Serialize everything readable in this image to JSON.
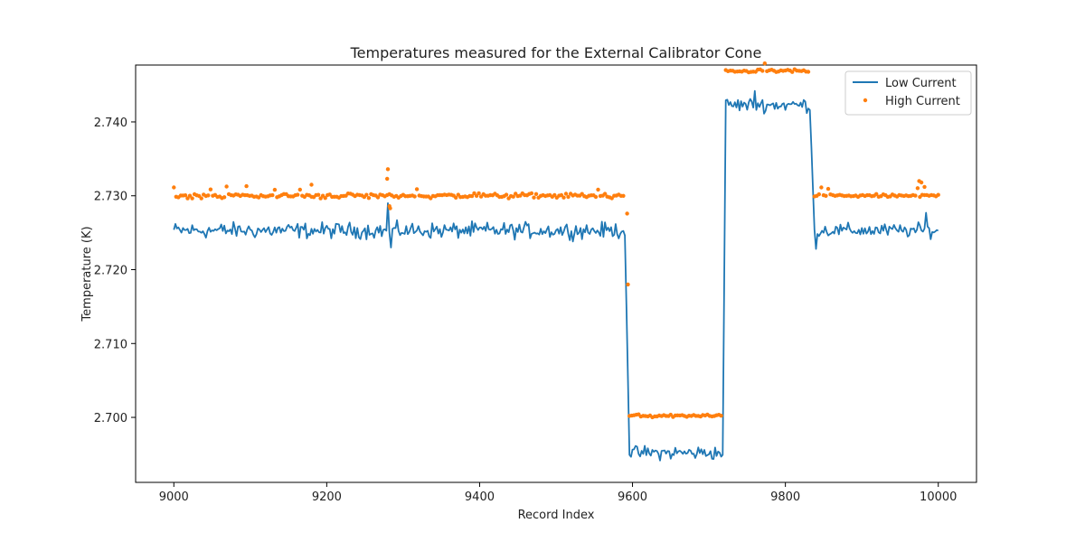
{
  "chart_data": {
    "type": "line+scatter",
    "title": "Temperatures measured for the External Calibrator Cone",
    "xlabel": "Record Index",
    "ylabel": "Temperature (K)",
    "xlim": [
      8950,
      10050
    ],
    "ylim": [
      2.6912,
      2.7477
    ],
    "xticks": [
      9000,
      9200,
      9400,
      9600,
      9800,
      10000
    ],
    "yticks": [
      2.7,
      2.71,
      2.72,
      2.73,
      2.74
    ],
    "ytick_labels": [
      "2.700",
      "2.710",
      "2.720",
      "2.730",
      "2.740"
    ],
    "x_range": [
      9000,
      10000
    ],
    "legend": {
      "position": "top-right"
    },
    "series": [
      {
        "name": "Low Current",
        "kind": "line",
        "color": "#1f77b4",
        "segments": [
          {
            "x_start": 9000,
            "x_end": 9590,
            "level": 2.7253,
            "noise": 0.0008
          },
          {
            "x_start": 9596,
            "x_end": 9718,
            "level": 2.6952,
            "noise": 0.0007
          },
          {
            "x_start": 9722,
            "x_end": 9832,
            "level": 2.7423,
            "noise": 0.0007
          },
          {
            "x_start": 9838,
            "x_end": 10000,
            "level": 2.7253,
            "noise": 0.0007
          }
        ],
        "spikes": [
          {
            "x": 9280,
            "y": 2.729
          },
          {
            "x": 9285,
            "y": 2.723
          },
          {
            "x": 9760,
            "y": 2.7442
          },
          {
            "x": 9840,
            "y": 2.7228
          },
          {
            "x": 9985,
            "y": 2.7277
          }
        ]
      },
      {
        "name": "High Current",
        "kind": "scatter",
        "color": "#ff7f0e",
        "segments": [
          {
            "x_start": 9000,
            "x_end": 9590,
            "level": 2.73,
            "noise": 0.00025
          },
          {
            "x_start": 9596,
            "x_end": 9718,
            "level": 2.7002,
            "noise": 0.00015
          },
          {
            "x_start": 9722,
            "x_end": 9832,
            "level": 2.7469,
            "noise": 0.00015
          },
          {
            "x_start": 9838,
            "x_end": 10000,
            "level": 2.73,
            "noise": 0.00015
          }
        ],
        "outliers": [
          {
            "x": 9280,
            "y": 2.7336
          },
          {
            "x": 9279,
            "y": 2.7323
          },
          {
            "x": 9282,
            "y": 2.7286
          },
          {
            "x": 9283,
            "y": 2.7283
          },
          {
            "x": 9593,
            "y": 2.7276
          },
          {
            "x": 9594,
            "y": 2.718
          },
          {
            "x": 9095,
            "y": 2.7313
          },
          {
            "x": 9180,
            "y": 2.7315
          },
          {
            "x": 9975,
            "y": 2.732
          },
          {
            "x": 9978,
            "y": 2.7318
          },
          {
            "x": 9982,
            "y": 2.7312
          }
        ]
      }
    ]
  }
}
